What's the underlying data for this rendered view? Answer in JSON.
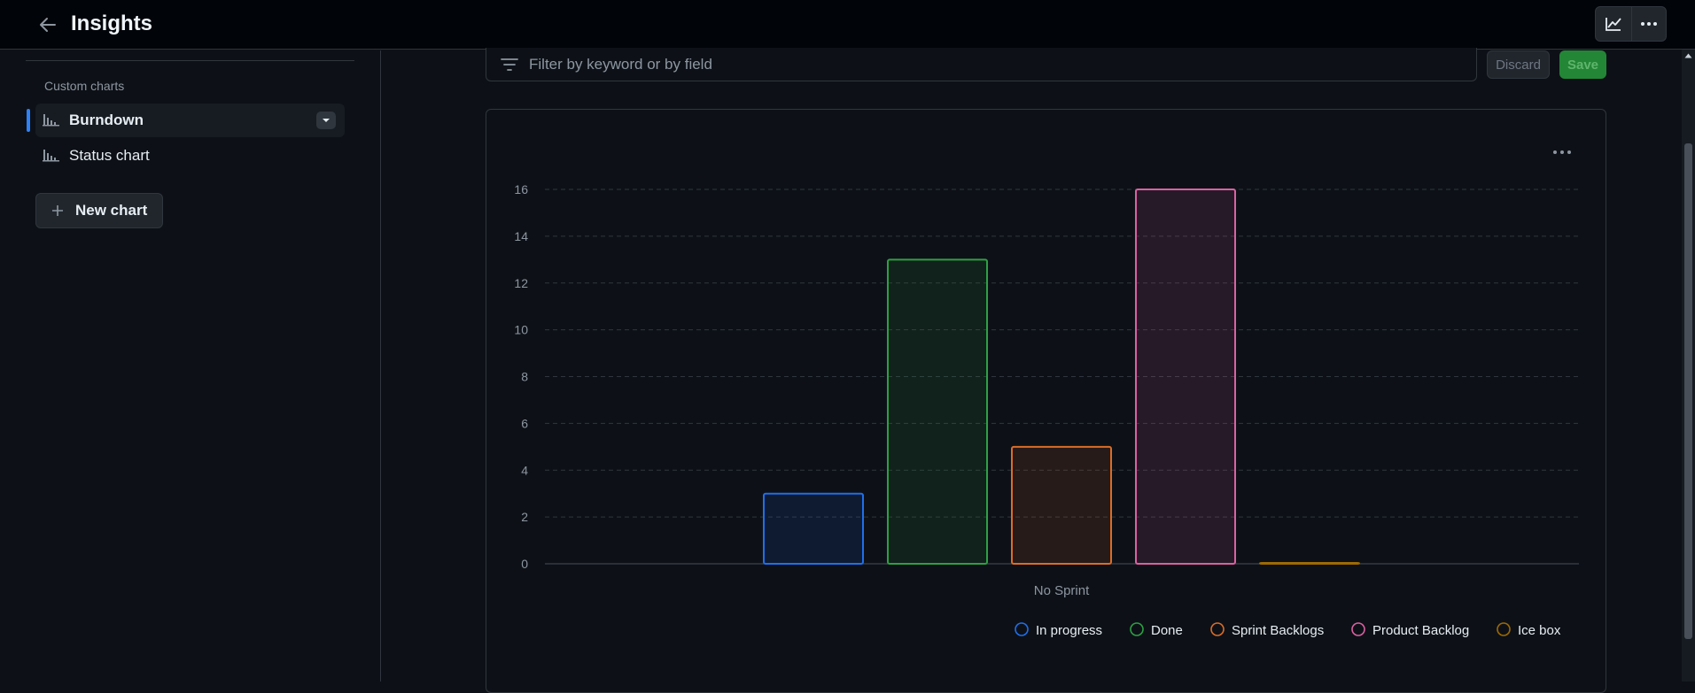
{
  "header": {
    "title": "Insights",
    "back_icon": "arrow-left-icon",
    "actions": [
      {
        "name": "graph-icon"
      },
      {
        "name": "kebab-horizontal-icon"
      }
    ]
  },
  "sidebar": {
    "section_label": "Custom charts",
    "items": [
      {
        "label": "Burndown",
        "icon": "bar-chart-icon",
        "active": true
      },
      {
        "label": "Status chart",
        "icon": "bar-chart-icon",
        "active": false
      }
    ],
    "new_chart_label": "New chart"
  },
  "filter": {
    "placeholder": "Filter by keyword or by field",
    "discard_label": "Discard",
    "save_label": "Save"
  },
  "colors": {
    "accent": "#2f81f7",
    "save_green": "#238636"
  },
  "chart_data": {
    "type": "bar",
    "categories": [
      "No Sprint"
    ],
    "series": [
      {
        "name": "In progress",
        "values": [
          3
        ],
        "color": "#1f6feb"
      },
      {
        "name": "Done",
        "values": [
          13
        ],
        "color": "#2ea043"
      },
      {
        "name": "Sprint Backlogs",
        "values": [
          5
        ],
        "color": "#db6d28"
      },
      {
        "name": "Product Backlog",
        "values": [
          16
        ],
        "color": "#db61a2"
      },
      {
        "name": "Ice box",
        "values": [
          0
        ],
        "color": "#9e6a03"
      }
    ],
    "yticks": [
      0,
      2,
      4,
      6,
      8,
      10,
      12,
      14,
      16
    ],
    "ylim": [
      0,
      16
    ],
    "grid": true,
    "legend_position": "bottom-right"
  }
}
